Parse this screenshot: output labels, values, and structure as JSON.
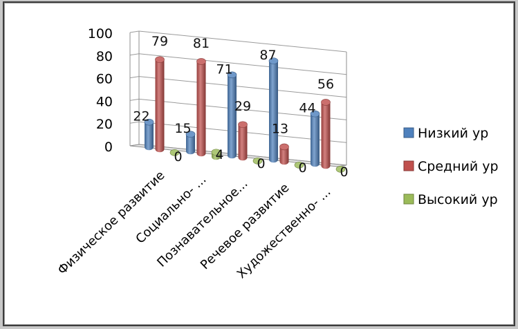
{
  "chart_data": {
    "type": "bar",
    "categories": [
      "Физическое развитие",
      "Социально- ...",
      "Познавательное...",
      "Речевое развитие",
      "Художественно- ..."
    ],
    "series": [
      {
        "name": "Низкий ур",
        "color": "#4f81bd",
        "values": [
          22,
          15,
          71,
          87,
          44
        ]
      },
      {
        "name": "Средний ур",
        "color": "#c0504d",
        "values": [
          79,
          81,
          29,
          13,
          56
        ]
      },
      {
        "name": "Высокий ур",
        "color": "#9bbb59",
        "values": [
          0,
          4,
          0,
          0,
          0
        ]
      }
    ],
    "yticks": [
      0,
      20,
      40,
      60,
      80,
      100
    ],
    "ylim": [
      0,
      100
    ],
    "grid": true,
    "legend_position": "right",
    "three_d": true
  }
}
